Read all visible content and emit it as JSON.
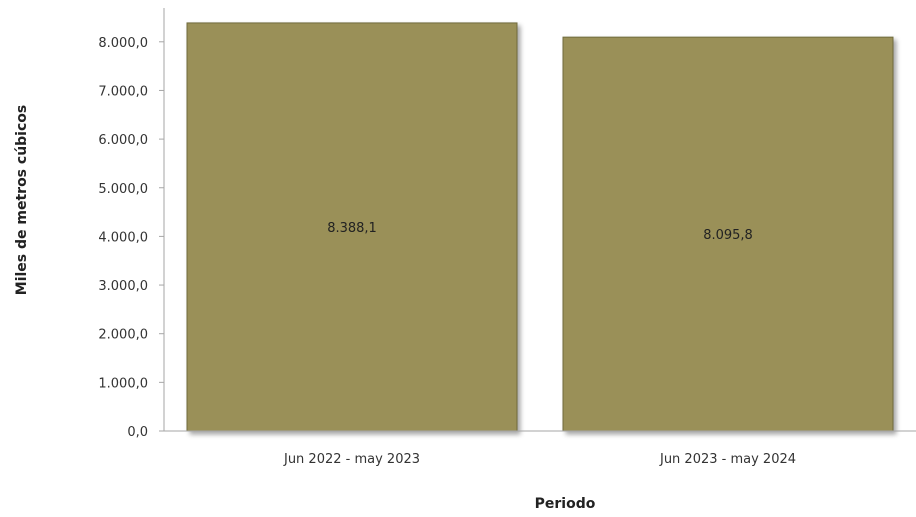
{
  "chart_data": {
    "type": "bar",
    "categories": [
      "Jun 2022 - may 2023",
      "Jun 2023 - may 2024"
    ],
    "values": [
      8388.1,
      8095.8
    ],
    "data_labels": [
      "8.388,1",
      "8.095,8"
    ],
    "title": "",
    "xlabel": "Periodo",
    "ylabel": "Miles de metros cúbicos",
    "ylim": [
      0,
      8000
    ],
    "yticks": [
      0,
      1000,
      2000,
      3000,
      4000,
      5000,
      6000,
      7000,
      8000
    ],
    "ytick_labels": [
      "0,0",
      "1.000,0",
      "2.000,0",
      "3.000,0",
      "4.000,0",
      "5.000,0",
      "6.000,0",
      "7.000,0",
      "8.000,0"
    ],
    "grid": false,
    "legend": "none",
    "colors": {
      "bar_fill": "#9a9058",
      "bar_stroke": "#6f6a3c",
      "axis": "#a6a6a6"
    }
  }
}
